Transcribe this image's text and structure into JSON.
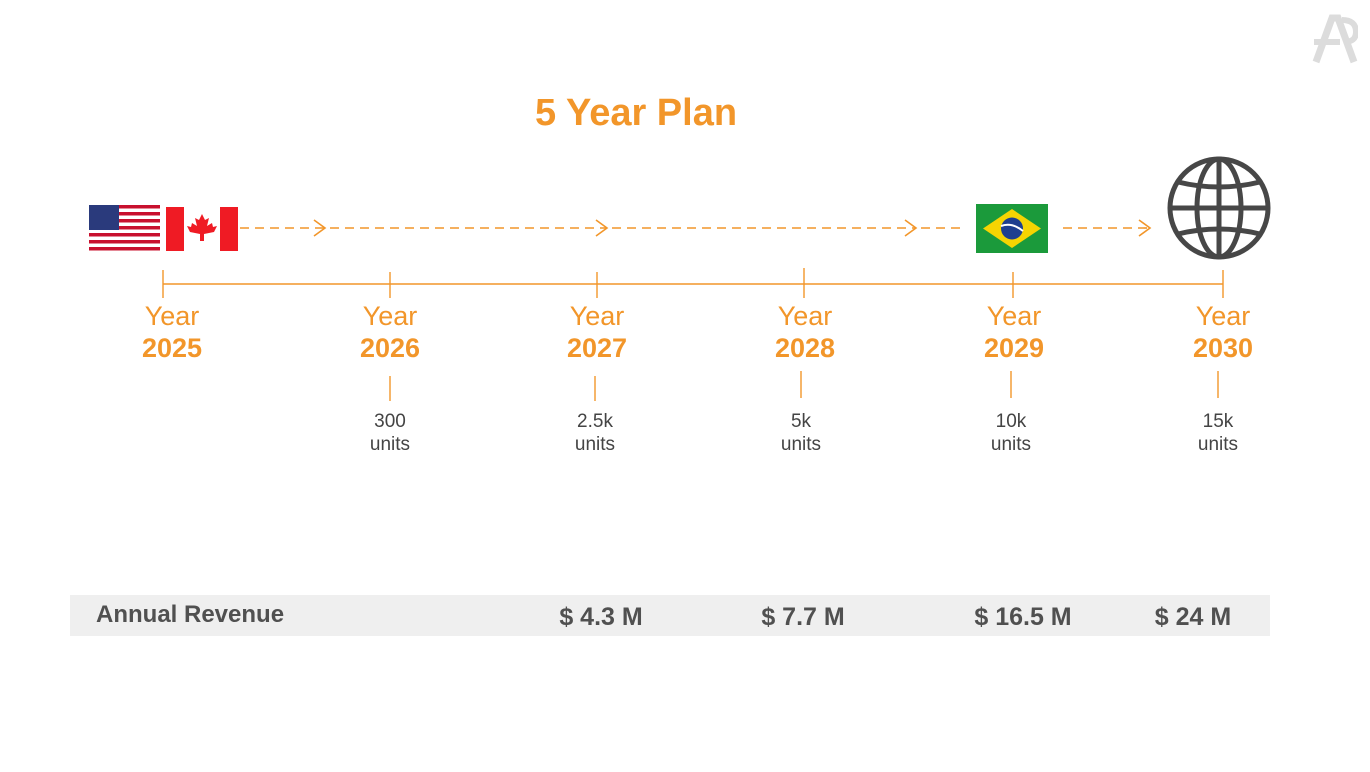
{
  "title": "5 Year Plan",
  "milestones": [
    {
      "year_label": "Year",
      "year": "2025"
    },
    {
      "year_label": "Year",
      "year": "2026",
      "units_value": "300",
      "units_label": "units"
    },
    {
      "year_label": "Year",
      "year": "2027",
      "units_value": "2.5k",
      "units_label": "units"
    },
    {
      "year_label": "Year",
      "year": "2028",
      "units_value": "5k",
      "units_label": "units"
    },
    {
      "year_label": "Year",
      "year": "2029",
      "units_value": "10k",
      "units_label": "units"
    },
    {
      "year_label": "Year",
      "year": "2030",
      "units_value": "15k",
      "units_label": "units"
    }
  ],
  "revenue": {
    "label": "Annual Revenue",
    "values": [
      "$ 4.3 M",
      "$ 7.7 M",
      "$ 16.5 M",
      "$ 24 M"
    ]
  },
  "icons": [
    "us-flag-icon",
    "canada-flag-icon",
    "brazil-flag-icon",
    "globe-icon",
    "logo-icon"
  ],
  "colors": {
    "accent": "#f2962a",
    "text": "#505050",
    "band": "#efefef"
  }
}
